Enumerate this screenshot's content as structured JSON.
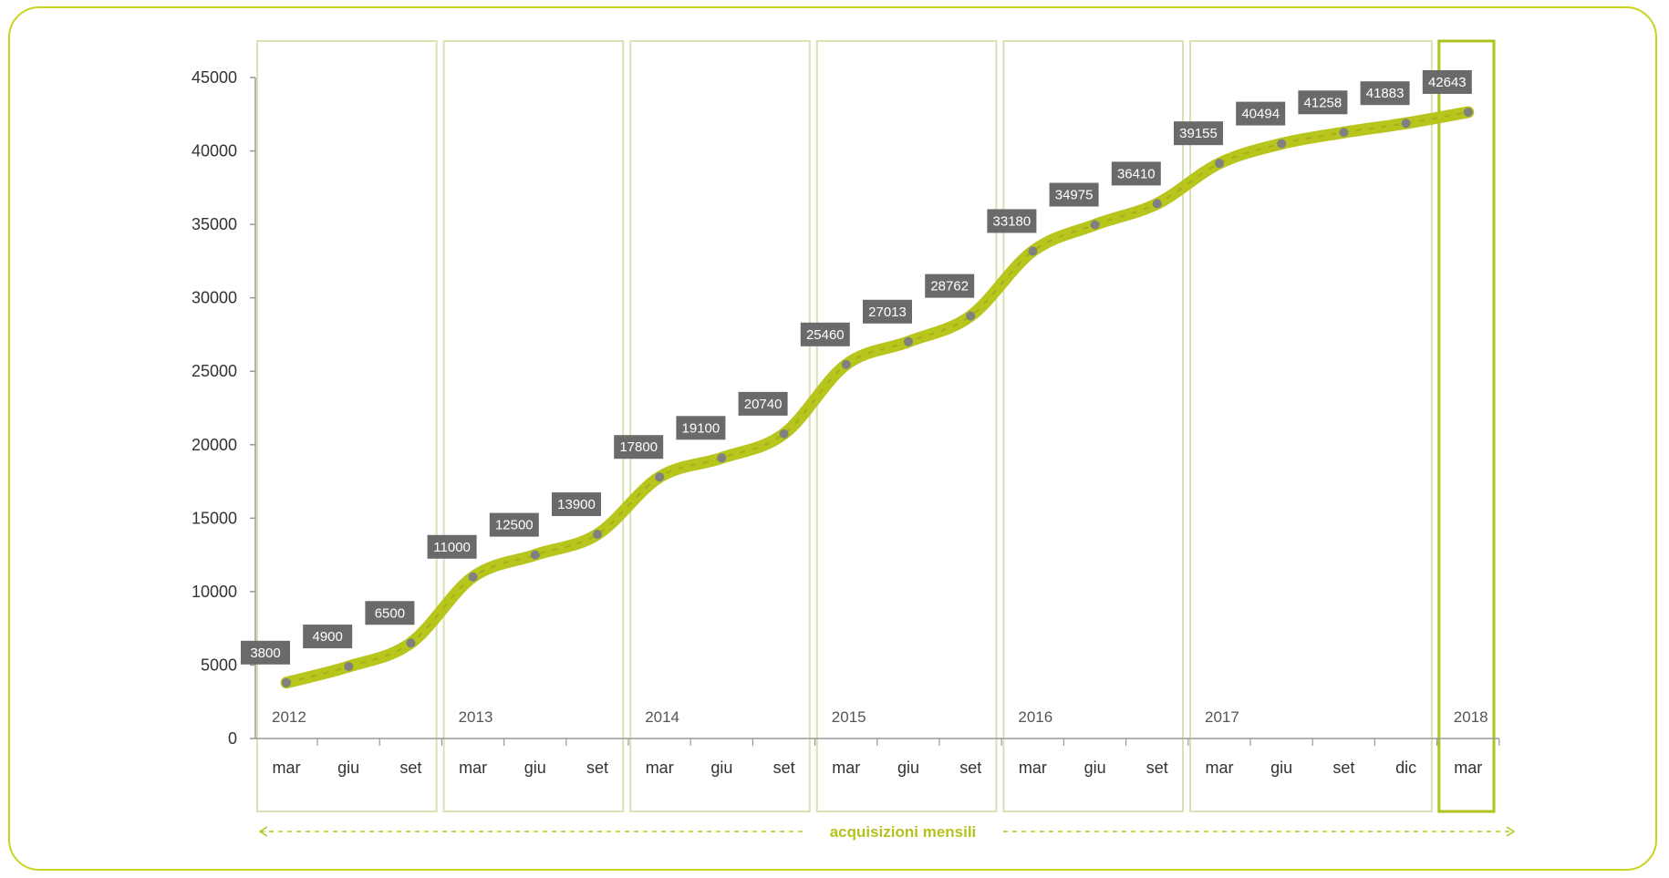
{
  "colors": {
    "line": "#b7c51d",
    "frame": "#c9d321",
    "year_box": "#d9e2b3",
    "highlight_box": "#b2c21d",
    "label_bg": "#6a6a6a",
    "marker": "#808080"
  },
  "chart_data": {
    "type": "line",
    "ylim": [
      0,
      45000
    ],
    "yticks": [
      "0",
      "5000",
      "10000",
      "15000",
      "20000",
      "25000",
      "30000",
      "35000",
      "40000",
      "45000"
    ],
    "grid": false,
    "footer_label": "acquisizioni mensili",
    "years": [
      {
        "year": "2012",
        "months": [
          "mar",
          "giu",
          "set"
        ]
      },
      {
        "year": "2013",
        "months": [
          "mar",
          "giu",
          "set"
        ]
      },
      {
        "year": "2014",
        "months": [
          "mar",
          "giu",
          "set"
        ]
      },
      {
        "year": "2015",
        "months": [
          "mar",
          "giu",
          "set"
        ]
      },
      {
        "year": "2016",
        "months": [
          "mar",
          "giu",
          "set"
        ]
      },
      {
        "year": "2017",
        "months": [
          "mar",
          "giu",
          "set",
          "dic"
        ]
      },
      {
        "year": "2018",
        "months": [
          "mar"
        ]
      }
    ],
    "values": [
      3800,
      4900,
      6500,
      11000,
      12500,
      13900,
      17800,
      19100,
      20740,
      25460,
      27013,
      28762,
      33180,
      34975,
      36410,
      39155,
      40494,
      41258,
      41883,
      42643
    ],
    "value_labels": [
      "3800",
      "4900",
      "6500",
      "11000",
      "12500",
      "13900",
      "17800",
      "19100",
      "20740",
      "25460",
      "27013",
      "28762",
      "33180",
      "34975",
      "36410",
      "39155",
      "40494",
      "41258",
      "41883",
      "42643"
    ],
    "highlighted_year": "2018"
  }
}
